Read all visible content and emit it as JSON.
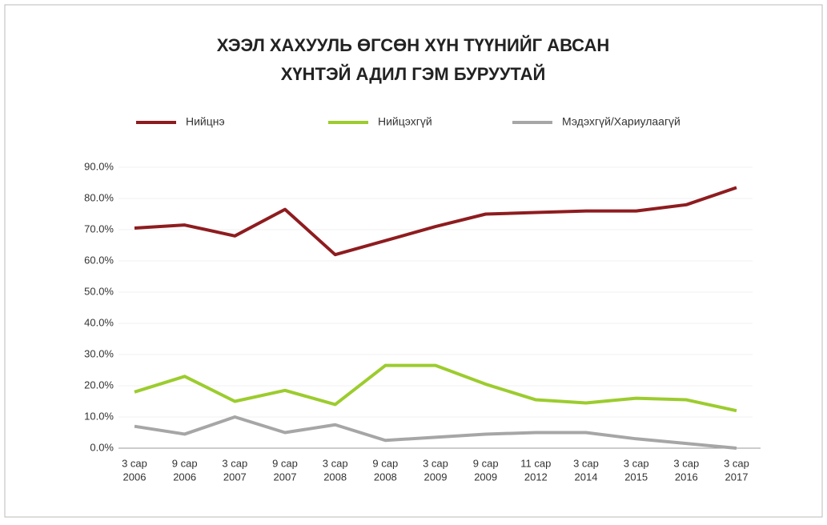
{
  "chart_data": {
    "type": "line",
    "title": [
      "ХЭЭЛ ХАХУУЛЬ ӨГСӨН ХҮН ТҮҮНИЙГ АВСАН",
      "ХҮНТЭЙ АДИЛ ГЭМ БУРУУТАЙ"
    ],
    "categories": [
      [
        "3 сар",
        "2006"
      ],
      [
        "9 сар",
        "2006"
      ],
      [
        "3 сар",
        "2007"
      ],
      [
        "9 сар",
        "2007"
      ],
      [
        "3 сар",
        "2008"
      ],
      [
        "9 сар",
        "2008"
      ],
      [
        "3 сар",
        "2009"
      ],
      [
        "9 сар",
        "2009"
      ],
      [
        "11 сар",
        "2012"
      ],
      [
        "3 сар",
        "2014"
      ],
      [
        "3 сар",
        "2015"
      ],
      [
        "3 сар",
        "2016"
      ],
      [
        "3 сар",
        "2017"
      ]
    ],
    "series": [
      {
        "name": "Нийцнэ",
        "color": "#8e1c1f",
        "values": [
          70.5,
          71.5,
          68,
          76.5,
          62,
          66.5,
          71,
          75,
          75.5,
          76,
          76,
          78,
          83.5
        ]
      },
      {
        "name": "Нийцэхгүй",
        "color": "#9ccc2e",
        "values": [
          18,
          23,
          15,
          18.5,
          14,
          26.5,
          26.5,
          20.5,
          15.5,
          14.5,
          16,
          15.5,
          12
        ]
      },
      {
        "name": "Мэдэхгүй/Хариулаагүй",
        "color": "#a6a6a6",
        "values": [
          7,
          4.5,
          10,
          5,
          7.5,
          2.5,
          3.5,
          4.5,
          5,
          5,
          3,
          1.5,
          0
        ]
      }
    ],
    "ylim": [
      0,
      90
    ],
    "yticks": [
      {
        "value": 0,
        "label": "0.0%"
      },
      {
        "value": 10,
        "label": "10.0%"
      },
      {
        "value": 20,
        "label": "20.0%"
      },
      {
        "value": 30,
        "label": "30.0%"
      },
      {
        "value": 40,
        "label": "40.0%"
      },
      {
        "value": 50,
        "label": "50.0%"
      },
      {
        "value": 60,
        "label": "60.0%"
      },
      {
        "value": 70,
        "label": "70.0%"
      },
      {
        "value": 80,
        "label": "80.0%"
      },
      {
        "value": 90,
        "label": "90.0%"
      }
    ],
    "legend": "top"
  }
}
